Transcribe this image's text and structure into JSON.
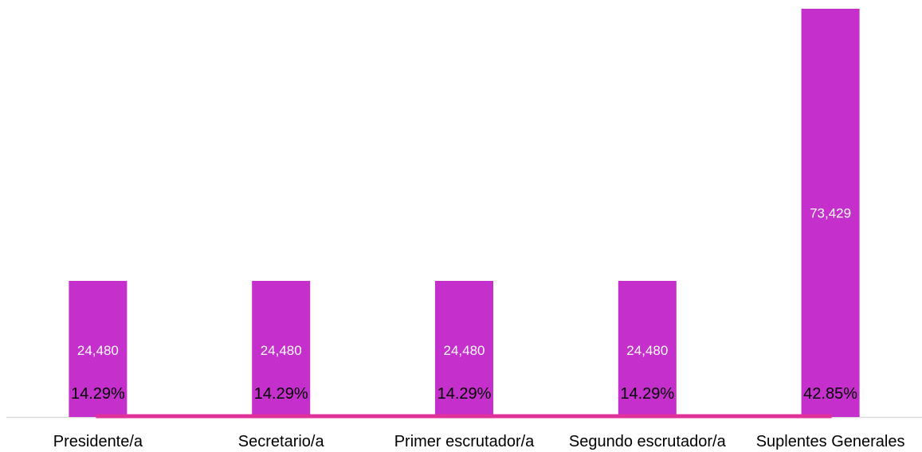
{
  "chart_data": {
    "type": "bar",
    "categories": [
      "Presidente/a",
      "Secretario/a",
      "Primer escrutador/a",
      "Segundo escrutador/a",
      "Suplentes Generales"
    ],
    "series": [
      {
        "values": [
          24480,
          24480,
          24480,
          24480,
          73429
        ]
      },
      {
        "type": "line",
        "values": [
          14.29,
          14.29,
          14.29,
          14.29,
          42.85
        ]
      }
    ],
    "value_labels": [
      "24,480",
      "24,480",
      "24,480",
      "24,480",
      "73,429"
    ],
    "percent_labels": [
      "14.29%",
      "14.29%",
      "14.29%",
      "14.29%",
      "42.85%"
    ],
    "title": "",
    "xlabel": "",
    "ylabel": "",
    "ylim": [
      0,
      74000
    ],
    "grid": false,
    "legend": "none"
  },
  "colors": {
    "bar": "#c52fcc",
    "line": "#e0309a",
    "axis": "#d9d9d9",
    "value_text": "#ffffff",
    "percent_text": "#000000"
  }
}
